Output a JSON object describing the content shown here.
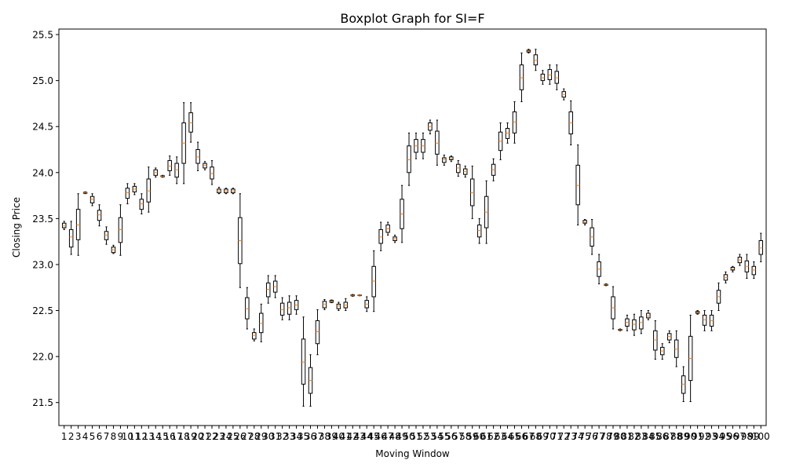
{
  "chart_data": {
    "type": "boxplot",
    "title": "Boxplot Graph for SI=F",
    "xlabel": "Moving Window",
    "ylabel": "Closing Price",
    "ylim": [
      21.25,
      25.56
    ],
    "yticks": [
      21.5,
      22.0,
      22.5,
      23.0,
      23.5,
      24.0,
      24.5,
      25.0,
      25.5
    ],
    "ytick_labels": [
      "21.5",
      "22.0",
      "22.5",
      "23.0",
      "23.5",
      "24.0",
      "24.5",
      "25.0",
      "25.5"
    ],
    "categories": [
      "1",
      "2",
      "3",
      "4",
      "5",
      "6",
      "7",
      "8",
      "9",
      "10",
      "11",
      "12",
      "13",
      "14",
      "15",
      "16",
      "17",
      "18",
      "19",
      "20",
      "21",
      "22",
      "23",
      "24",
      "25",
      "26",
      "27",
      "28",
      "29",
      "30",
      "31",
      "32",
      "33",
      "34",
      "35",
      "36",
      "37",
      "38",
      "39",
      "40",
      "41",
      "42",
      "43",
      "44",
      "45",
      "46",
      "47",
      "48",
      "49",
      "50",
      "51",
      "52",
      "53",
      "54",
      "55",
      "56",
      "57",
      "58",
      "59",
      "60",
      "61",
      "62",
      "63",
      "64",
      "65",
      "66",
      "67",
      "68",
      "69",
      "70",
      "71",
      "72",
      "73",
      "74",
      "75",
      "76",
      "77",
      "78",
      "79",
      "80",
      "81",
      "82",
      "83",
      "84",
      "85",
      "86",
      "87",
      "88",
      "89",
      "90",
      "91",
      "92",
      "93",
      "94",
      "95",
      "96",
      "97",
      "98",
      "99",
      "100"
    ],
    "box_color": "#000000",
    "median_color": "#ff7f0e",
    "boxes": [
      {
        "whislo": 23.38,
        "q1": 23.4,
        "med": 23.42,
        "q3": 23.45,
        "whishi": 23.47
      },
      {
        "whislo": 23.11,
        "q1": 23.19,
        "med": 23.3,
        "q3": 23.38,
        "whishi": 23.47
      },
      {
        "whislo": 23.1,
        "q1": 23.27,
        "med": 23.43,
        "q3": 23.6,
        "whishi": 23.77
      },
      {
        "whislo": 23.77,
        "q1": 23.775,
        "med": 23.78,
        "q3": 23.785,
        "whishi": 23.79
      },
      {
        "whislo": 23.64,
        "q1": 23.67,
        "med": 23.71,
        "q3": 23.74,
        "whishi": 23.77
      },
      {
        "whislo": 23.42,
        "q1": 23.48,
        "med": 23.54,
        "q3": 23.59,
        "whishi": 23.65
      },
      {
        "whislo": 23.22,
        "q1": 23.27,
        "med": 23.32,
        "q3": 23.36,
        "whishi": 23.41
      },
      {
        "whislo": 23.12,
        "q1": 23.13,
        "med": 23.16,
        "q3": 23.19,
        "whishi": 23.21
      },
      {
        "whislo": 23.1,
        "q1": 23.24,
        "med": 23.38,
        "q3": 23.51,
        "whishi": 23.65
      },
      {
        "whislo": 23.66,
        "q1": 23.72,
        "med": 23.78,
        "q3": 23.83,
        "whishi": 23.88
      },
      {
        "whislo": 23.76,
        "q1": 23.79,
        "med": 23.82,
        "q3": 23.85,
        "whishi": 23.88
      },
      {
        "whislo": 23.55,
        "q1": 23.6,
        "med": 23.66,
        "q3": 23.71,
        "whishi": 23.77
      },
      {
        "whislo": 23.57,
        "q1": 23.68,
        "med": 23.8,
        "q3": 23.93,
        "whishi": 24.06
      },
      {
        "whislo": 23.95,
        "q1": 23.97,
        "med": 24.0,
        "q3": 24.03,
        "whishi": 24.05
      },
      {
        "whislo": 23.95,
        "q1": 23.955,
        "med": 23.96,
        "q3": 23.965,
        "whishi": 23.97
      },
      {
        "whislo": 23.97,
        "q1": 24.02,
        "med": 24.07,
        "q3": 24.13,
        "whishi": 24.18
      },
      {
        "whislo": 23.88,
        "q1": 23.95,
        "med": 24.03,
        "q3": 24.1,
        "whishi": 24.17
      },
      {
        "whislo": 23.88,
        "q1": 24.1,
        "med": 24.32,
        "q3": 24.54,
        "whishi": 24.76
      },
      {
        "whislo": 24.33,
        "q1": 24.44,
        "med": 24.54,
        "q3": 24.65,
        "whishi": 24.76
      },
      {
        "whislo": 24.02,
        "q1": 24.1,
        "med": 24.17,
        "q3": 24.25,
        "whishi": 24.33
      },
      {
        "whislo": 24.03,
        "q1": 24.05,
        "med": 24.08,
        "q3": 24.1,
        "whishi": 24.12
      },
      {
        "whislo": 23.87,
        "q1": 23.93,
        "med": 23.99,
        "q3": 24.06,
        "whishi": 24.13
      },
      {
        "whislo": 23.77,
        "q1": 23.78,
        "med": 23.8,
        "q3": 23.82,
        "whishi": 23.84
      },
      {
        "whislo": 23.77,
        "q1": 23.78,
        "med": 23.8,
        "q3": 23.82,
        "whishi": 23.83
      },
      {
        "whislo": 23.77,
        "q1": 23.78,
        "med": 23.8,
        "q3": 23.82,
        "whishi": 23.83
      },
      {
        "whislo": 22.75,
        "q1": 23.01,
        "med": 23.26,
        "q3": 23.51,
        "whishi": 23.77
      },
      {
        "whislo": 22.3,
        "q1": 22.41,
        "med": 22.52,
        "q3": 22.64,
        "whishi": 22.75
      },
      {
        "whislo": 22.17,
        "q1": 22.19,
        "med": 22.23,
        "q3": 22.26,
        "whishi": 22.3
      },
      {
        "whislo": 22.16,
        "q1": 22.26,
        "med": 22.36,
        "q3": 22.47,
        "whishi": 22.57
      },
      {
        "whislo": 22.58,
        "q1": 22.65,
        "med": 22.73,
        "q3": 22.8,
        "whishi": 22.88
      },
      {
        "whislo": 22.64,
        "q1": 22.7,
        "med": 22.76,
        "q3": 22.82,
        "whishi": 22.88
      },
      {
        "whislo": 22.4,
        "q1": 22.45,
        "med": 22.51,
        "q3": 22.58,
        "whishi": 22.64
      },
      {
        "whislo": 22.4,
        "q1": 22.46,
        "med": 22.53,
        "q3": 22.59,
        "whishi": 22.66
      },
      {
        "whislo": 22.46,
        "q1": 22.51,
        "med": 22.56,
        "q3": 22.61,
        "whishi": 22.66
      },
      {
        "whislo": 21.46,
        "q1": 21.7,
        "med": 21.94,
        "q3": 22.19,
        "whishi": 22.43
      },
      {
        "whislo": 21.46,
        "q1": 21.6,
        "med": 21.74,
        "q3": 21.88,
        "whishi": 22.02
      },
      {
        "whislo": 22.02,
        "q1": 22.14,
        "med": 22.27,
        "q3": 22.39,
        "whishi": 22.51
      },
      {
        "whislo": 22.51,
        "q1": 22.53,
        "med": 22.57,
        "q3": 22.6,
        "whishi": 22.62
      },
      {
        "whislo": 22.585,
        "q1": 22.59,
        "med": 22.6,
        "q3": 22.61,
        "whishi": 22.615
      },
      {
        "whislo": 22.5,
        "q1": 22.52,
        "med": 22.55,
        "q3": 22.57,
        "whishi": 22.59
      },
      {
        "whislo": 22.5,
        "q1": 22.53,
        "med": 22.56,
        "q3": 22.59,
        "whishi": 22.63
      },
      {
        "whislo": 22.655,
        "q1": 22.66,
        "med": 22.665,
        "q3": 22.67,
        "whishi": 22.675
      },
      {
        "whislo": 22.66,
        "q1": 22.662,
        "med": 22.665,
        "q3": 22.668,
        "whishi": 22.67
      },
      {
        "whislo": 22.49,
        "q1": 22.53,
        "med": 22.57,
        "q3": 22.61,
        "whishi": 22.65
      },
      {
        "whislo": 22.49,
        "q1": 22.65,
        "med": 22.82,
        "q3": 22.98,
        "whishi": 23.15
      },
      {
        "whislo": 23.15,
        "q1": 23.23,
        "med": 23.3,
        "q3": 23.38,
        "whishi": 23.46
      },
      {
        "whislo": 23.32,
        "q1": 23.35,
        "med": 23.39,
        "q3": 23.43,
        "whishi": 23.46
      },
      {
        "whislo": 23.24,
        "q1": 23.26,
        "med": 23.28,
        "q3": 23.3,
        "whishi": 23.32
      },
      {
        "whislo": 23.24,
        "q1": 23.39,
        "med": 23.55,
        "q3": 23.71,
        "whishi": 23.86
      },
      {
        "whislo": 23.86,
        "q1": 24.0,
        "med": 24.14,
        "q3": 24.29,
        "whishi": 24.43
      },
      {
        "whislo": 24.15,
        "q1": 24.22,
        "med": 24.29,
        "q3": 24.36,
        "whishi": 24.43
      },
      {
        "whislo": 24.15,
        "q1": 24.22,
        "med": 24.29,
        "q3": 24.36,
        "whishi": 24.43
      },
      {
        "whislo": 24.42,
        "q1": 24.46,
        "med": 24.5,
        "q3": 24.54,
        "whishi": 24.57
      },
      {
        "whislo": 24.08,
        "q1": 24.2,
        "med": 24.32,
        "q3": 24.45,
        "whishi": 24.57
      },
      {
        "whislo": 24.08,
        "q1": 24.11,
        "med": 24.14,
        "q3": 24.16,
        "whishi": 24.19
      },
      {
        "whislo": 24.12,
        "q1": 24.14,
        "med": 24.15,
        "q3": 24.17,
        "whishi": 24.18
      },
      {
        "whislo": 23.96,
        "q1": 24.0,
        "med": 24.05,
        "q3": 24.09,
        "whishi": 24.13
      },
      {
        "whislo": 23.95,
        "q1": 23.98,
        "med": 24.01,
        "q3": 24.04,
        "whishi": 24.07
      },
      {
        "whislo": 23.5,
        "q1": 23.64,
        "med": 23.78,
        "q3": 23.93,
        "whishi": 24.07
      },
      {
        "whislo": 23.23,
        "q1": 23.3,
        "med": 23.37,
        "q3": 23.43,
        "whishi": 23.5
      },
      {
        "whislo": 23.23,
        "q1": 23.4,
        "med": 23.57,
        "q3": 23.74,
        "whishi": 23.91
      },
      {
        "whislo": 23.91,
        "q1": 23.97,
        "med": 24.03,
        "q3": 24.09,
        "whishi": 24.15
      },
      {
        "whislo": 24.14,
        "q1": 24.24,
        "med": 24.34,
        "q3": 24.44,
        "whishi": 24.54
      },
      {
        "whislo": 24.32,
        "q1": 24.37,
        "med": 24.43,
        "q3": 24.48,
        "whishi": 24.54
      },
      {
        "whislo": 24.32,
        "q1": 24.43,
        "med": 24.55,
        "q3": 24.66,
        "whishi": 24.77
      },
      {
        "whislo": 24.77,
        "q1": 24.9,
        "med": 25.03,
        "q3": 25.17,
        "whishi": 25.3
      },
      {
        "whislo": 25.3,
        "q1": 25.31,
        "med": 25.32,
        "q3": 25.33,
        "whishi": 25.34
      },
      {
        "whislo": 25.11,
        "q1": 25.17,
        "med": 25.22,
        "q3": 25.28,
        "whishi": 25.34
      },
      {
        "whislo": 24.96,
        "q1": 25.0,
        "med": 25.03,
        "q3": 25.07,
        "whishi": 25.11
      },
      {
        "whislo": 24.96,
        "q1": 25.01,
        "med": 25.06,
        "q3": 25.12,
        "whishi": 25.17
      },
      {
        "whislo": 24.9,
        "q1": 24.97,
        "med": 25.03,
        "q3": 25.1,
        "whishi": 25.17
      },
      {
        "whislo": 24.79,
        "q1": 24.82,
        "med": 24.85,
        "q3": 24.88,
        "whishi": 24.91
      },
      {
        "whislo": 24.3,
        "q1": 24.42,
        "med": 24.54,
        "q3": 24.66,
        "whishi": 24.78
      },
      {
        "whislo": 23.43,
        "q1": 23.65,
        "med": 23.86,
        "q3": 24.08,
        "whishi": 24.3
      },
      {
        "whislo": 23.43,
        "q1": 23.45,
        "med": 23.46,
        "q3": 23.48,
        "whishi": 23.49
      },
      {
        "whislo": 23.11,
        "q1": 23.2,
        "med": 23.3,
        "q3": 23.4,
        "whishi": 23.49
      },
      {
        "whislo": 22.79,
        "q1": 22.87,
        "med": 22.95,
        "q3": 23.03,
        "whishi": 23.11
      },
      {
        "whislo": 22.77,
        "q1": 22.775,
        "med": 22.78,
        "q3": 22.785,
        "whishi": 22.79
      },
      {
        "whislo": 22.3,
        "q1": 22.41,
        "med": 22.53,
        "q3": 22.65,
        "whishi": 22.76
      },
      {
        "whislo": 22.28,
        "q1": 22.285,
        "med": 22.29,
        "q3": 22.295,
        "whishi": 22.3
      },
      {
        "whislo": 22.28,
        "q1": 22.33,
        "med": 22.37,
        "q3": 22.41,
        "whishi": 22.45
      },
      {
        "whislo": 22.23,
        "q1": 22.29,
        "med": 22.35,
        "q3": 22.4,
        "whishi": 22.46
      },
      {
        "whislo": 22.25,
        "q1": 22.3,
        "med": 22.37,
        "q3": 22.43,
        "whishi": 22.5
      },
      {
        "whislo": 22.4,
        "q1": 22.42,
        "med": 22.44,
        "q3": 22.47,
        "whishi": 22.5
      },
      {
        "whislo": 21.97,
        "q1": 22.07,
        "med": 22.18,
        "q3": 22.28,
        "whishi": 22.39
      },
      {
        "whislo": 21.97,
        "q1": 22.02,
        "med": 22.06,
        "q3": 22.1,
        "whishi": 22.14
      },
      {
        "whislo": 22.15,
        "q1": 22.18,
        "med": 22.22,
        "q3": 22.25,
        "whishi": 22.28
      },
      {
        "whislo": 21.89,
        "q1": 21.99,
        "med": 22.08,
        "q3": 22.18,
        "whishi": 22.28
      },
      {
        "whislo": 21.51,
        "q1": 21.6,
        "med": 21.7,
        "q3": 21.79,
        "whishi": 21.89
      },
      {
        "whislo": 21.51,
        "q1": 21.74,
        "med": 21.98,
        "q3": 22.22,
        "whishi": 22.45
      },
      {
        "whislo": 22.46,
        "q1": 22.47,
        "med": 22.48,
        "q3": 22.49,
        "whishi": 22.5
      },
      {
        "whislo": 22.28,
        "q1": 22.34,
        "med": 22.4,
        "q3": 22.45,
        "whishi": 22.5
      },
      {
        "whislo": 22.28,
        "q1": 22.33,
        "med": 22.39,
        "q3": 22.45,
        "whishi": 22.5
      },
      {
        "whislo": 22.5,
        "q1": 22.58,
        "med": 22.65,
        "q3": 22.72,
        "whishi": 22.8
      },
      {
        "whislo": 22.8,
        "q1": 22.83,
        "med": 22.86,
        "q3": 22.89,
        "whishi": 22.92
      },
      {
        "whislo": 22.92,
        "q1": 22.94,
        "med": 22.95,
        "q3": 22.97,
        "whishi": 22.98
      },
      {
        "whislo": 22.99,
        "q1": 23.02,
        "med": 23.05,
        "q3": 23.08,
        "whishi": 23.11
      },
      {
        "whislo": 22.85,
        "q1": 22.92,
        "med": 22.98,
        "q3": 23.04,
        "whishi": 23.11
      },
      {
        "whislo": 22.85,
        "q1": 22.89,
        "med": 22.94,
        "q3": 22.98,
        "whishi": 23.03
      },
      {
        "whislo": 23.03,
        "q1": 23.11,
        "med": 23.18,
        "q3": 23.26,
        "whishi": 23.34
      }
    ]
  }
}
